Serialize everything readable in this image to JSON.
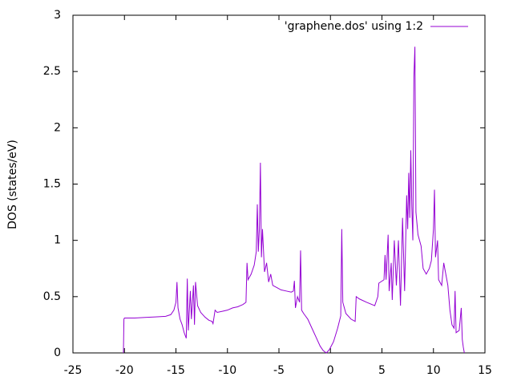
{
  "chart_data": {
    "type": "line",
    "y_label": "DOS (states/eV)",
    "x": [
      -20.1,
      -20.05,
      -20,
      -19,
      -18,
      -17,
      -16,
      -15.5,
      -15.2,
      -15,
      -14.9,
      -14.8,
      -14.6,
      -14.4,
      -14.2,
      -14,
      -13.9,
      -13.8,
      -13.6,
      -13.5,
      -13.3,
      -13.2,
      -13.1,
      -12.9,
      -12.6,
      -12.2,
      -11.8,
      -11.5,
      -11.4,
      -11.2,
      -11,
      -10.5,
      -10,
      -9.5,
      -9,
      -8.5,
      -8.2,
      -8.1,
      -8,
      -7.7,
      -7.4,
      -7.2,
      -7.1,
      -7,
      -6.9,
      -6.8,
      -6.7,
      -6.6,
      -6.4,
      -6.2,
      -6,
      -5.8,
      -5.6,
      -5.2,
      -4.8,
      -4.3,
      -3.8,
      -3.6,
      -3.5,
      -3.4,
      -3.2,
      -3,
      -2.9,
      -2.8,
      -2.6,
      -2.2,
      -1.8,
      -1.4,
      -1,
      -0.7,
      -0.4,
      -0.1,
      0.3,
      0.7,
      1,
      1.1,
      1.2,
      1.5,
      2,
      2.4,
      2.5,
      2.8,
      3.5,
      4.3,
      4.6,
      4.7,
      5.2,
      5.3,
      5.4,
      5.6,
      5.7,
      5.9,
      6,
      6.2,
      6.4,
      6.6,
      6.8,
      7,
      7.2,
      7.4,
      7.5,
      7.6,
      7.7,
      7.8,
      7.9,
      8,
      8.1,
      8.2,
      8.3,
      8.5,
      8.8,
      9,
      9.3,
      9.6,
      9.8,
      10,
      10.1,
      10.2,
      10.4,
      10.5,
      10.8,
      11,
      11.2,
      11.4,
      11.6,
      11.8,
      12,
      12.1,
      12.2,
      12.5,
      12.7,
      12.8,
      12.9,
      13
    ],
    "series": [
      {
        "name": "'graphene.dos' using 1:2",
        "color": "#9400d3",
        "values": [
          0,
          0.3,
          0.31,
          0.31,
          0.315,
          0.32,
          0.325,
          0.34,
          0.38,
          0.45,
          0.63,
          0.4,
          0.3,
          0.25,
          0.18,
          0.13,
          0.66,
          0.2,
          0.55,
          0.3,
          0.6,
          0.25,
          0.63,
          0.42,
          0.36,
          0.32,
          0.29,
          0.28,
          0.26,
          0.38,
          0.36,
          0.37,
          0.38,
          0.4,
          0.41,
          0.43,
          0.45,
          0.8,
          0.65,
          0.7,
          0.78,
          0.9,
          1.32,
          0.9,
          1.1,
          1.69,
          0.85,
          1.1,
          0.72,
          0.8,
          0.63,
          0.7,
          0.6,
          0.58,
          0.56,
          0.55,
          0.54,
          0.55,
          0.64,
          0.4,
          0.5,
          0.45,
          0.91,
          0.38,
          0.35,
          0.3,
          0.22,
          0.14,
          0.06,
          0.02,
          0,
          0.03,
          0.1,
          0.22,
          0.33,
          1.1,
          0.45,
          0.35,
          0.3,
          0.28,
          0.5,
          0.48,
          0.45,
          0.42,
          0.5,
          0.62,
          0.65,
          0.87,
          0.65,
          1.05,
          0.55,
          0.8,
          0.47,
          1,
          0.6,
          1,
          0.42,
          1.2,
          0.55,
          1.4,
          1.1,
          1.6,
          1.2,
          1.8,
          1.3,
          1,
          2.45,
          2.72,
          1.25,
          1.05,
          0.95,
          0.75,
          0.7,
          0.75,
          0.82,
          1.1,
          1.45,
          0.85,
          1,
          0.65,
          0.6,
          0.8,
          0.7,
          0.6,
          0.38,
          0.25,
          0.22,
          0.55,
          0.18,
          0.2,
          0.4,
          0.12,
          0.05,
          0
        ]
      }
    ],
    "xlim": [
      -25,
      15
    ],
    "xticks": [
      -25,
      -20,
      -15,
      -10,
      -5,
      0,
      5,
      10,
      15
    ],
    "ylim": [
      0,
      3
    ],
    "yticks": [
      0,
      0.5,
      1,
      1.5,
      2,
      2.5,
      3
    ],
    "legend": "top-right",
    "grid": false
  }
}
